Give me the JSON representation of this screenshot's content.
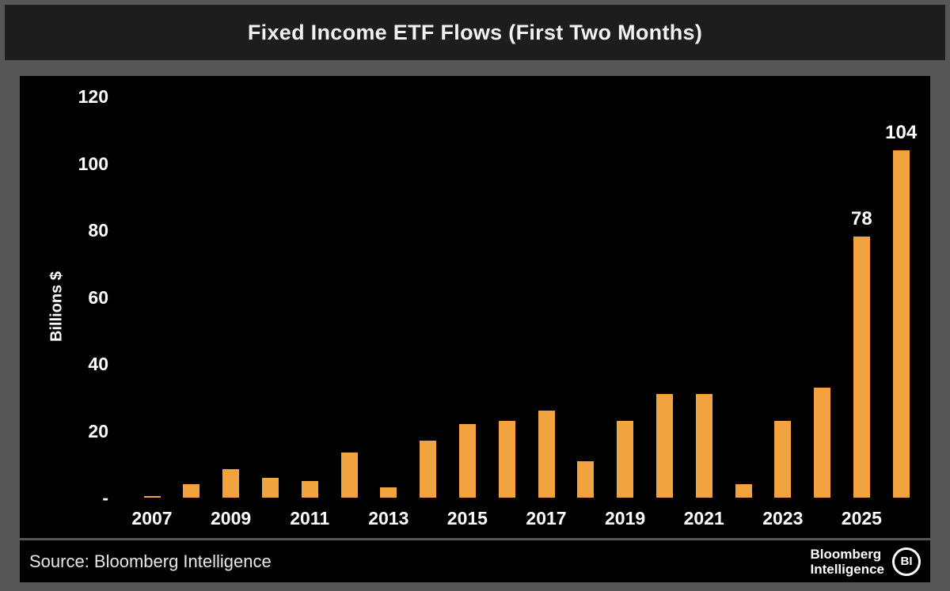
{
  "page": {
    "title": "Fixed Income ETF Flows (First Two Months)",
    "footer": {
      "source": "Source: Bloomberg Intelligence",
      "brand_line1": "Bloomberg",
      "brand_line2": "Intelligence",
      "logo_text": "BI"
    }
  },
  "colors": {
    "bar": "#F0A33F",
    "panel_background": "#000000",
    "titlebar_background": "#1d1d1d",
    "outer_background": "#565656",
    "text": "#ffffff"
  },
  "chart_data": {
    "type": "bar",
    "title": "Fixed Income ETF Flows (First Two Months)",
    "xlabel": "",
    "ylabel": "Billions $",
    "ylim": [
      0,
      120
    ],
    "grid": false,
    "legend": false,
    "categories": [
      2007,
      2008,
      2009,
      2010,
      2011,
      2012,
      2013,
      2014,
      2015,
      2016,
      2017,
      2018,
      2019,
      2020,
      2021,
      2022,
      2023,
      2024,
      2025,
      2026
    ],
    "values": [
      0.5,
      4,
      8.5,
      6,
      5,
      13.5,
      3,
      17,
      22,
      23,
      26,
      11,
      23,
      31,
      31,
      4,
      23,
      33,
      78,
      104
    ],
    "xtick_labels": [
      "2007",
      "2009",
      "2011",
      "2013",
      "2015",
      "2017",
      "2019",
      "2021",
      "2023",
      "2025"
    ],
    "ytick_labels": [
      {
        "value": 0,
        "label": "-"
      },
      {
        "value": 20,
        "label": "20"
      },
      {
        "value": 40,
        "label": "40"
      },
      {
        "value": 60,
        "label": "60"
      },
      {
        "value": 80,
        "label": "80"
      },
      {
        "value": 100,
        "label": "100"
      },
      {
        "value": 120,
        "label": "120"
      }
    ],
    "annotations": [
      {
        "category": 2025,
        "text": "78"
      },
      {
        "category": 2026,
        "text": "104"
      }
    ]
  }
}
